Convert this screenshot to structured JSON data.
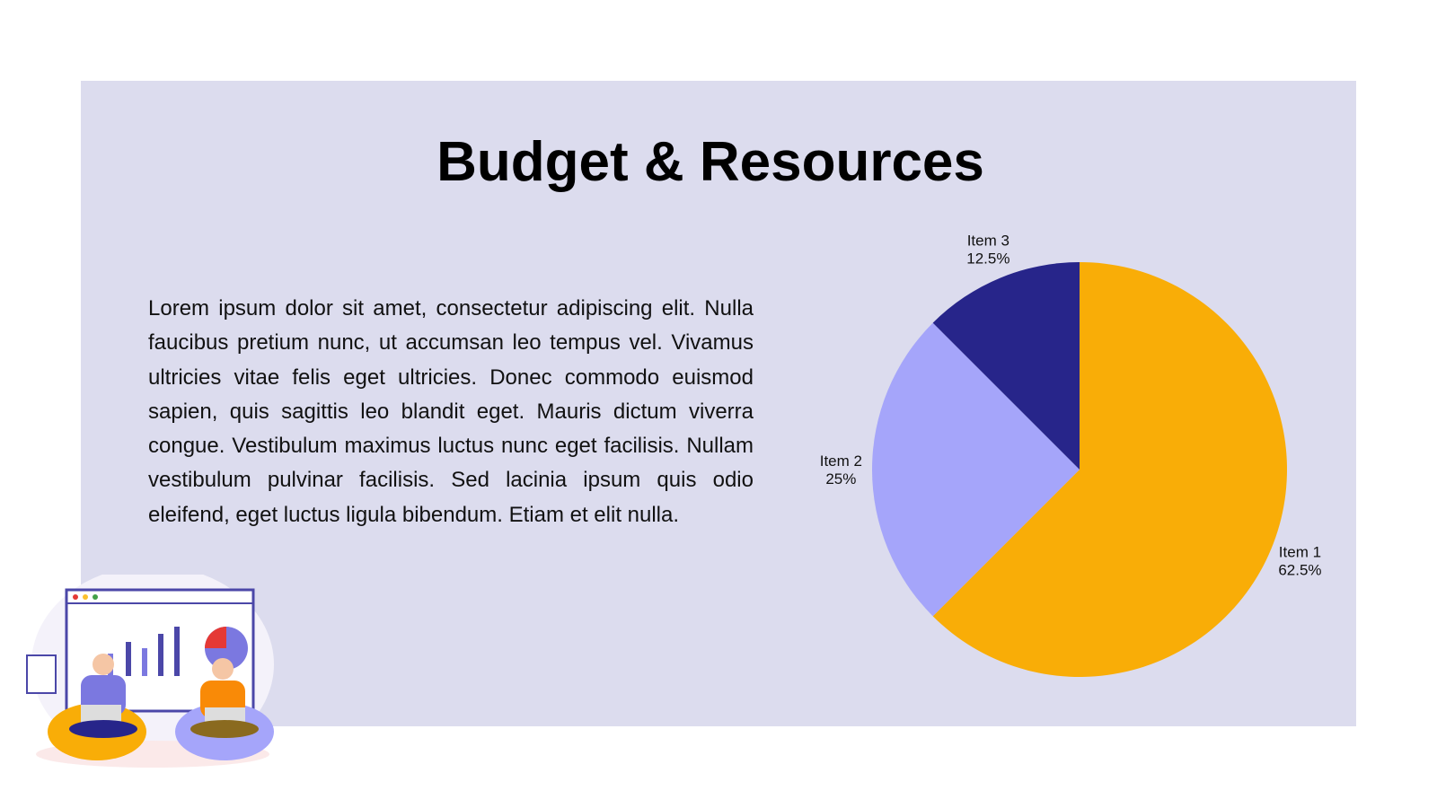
{
  "title": "Budget & Resources",
  "body": "Lorem ipsum dolor sit amet, consectetur adipiscing elit. Nulla faucibus pretium nunc, ut accumsan leo tempus vel. Vivamus ultricies vitae felis eget ultricies. Donec commodo euismod sapien, quis sagittis leo blandit eget. Mauris dictum viverra congue. Vestibulum maximus luctus nunc eget facilisis. Nullam vestibulum pulvinar facilisis. Sed lacinia ipsum quis odio eleifend, eget luctus ligula bibendum. Etiam et elit nulla.",
  "chart_data": {
    "type": "pie",
    "categories": [
      "Item 1",
      "Item 2",
      "Item 3"
    ],
    "values": [
      62.5,
      25,
      12.5
    ],
    "value_labels": [
      "62.5%",
      "25%",
      "12.5%"
    ],
    "colors": [
      "#f9ad07",
      "#a5a5fa",
      "#27258a"
    ]
  }
}
